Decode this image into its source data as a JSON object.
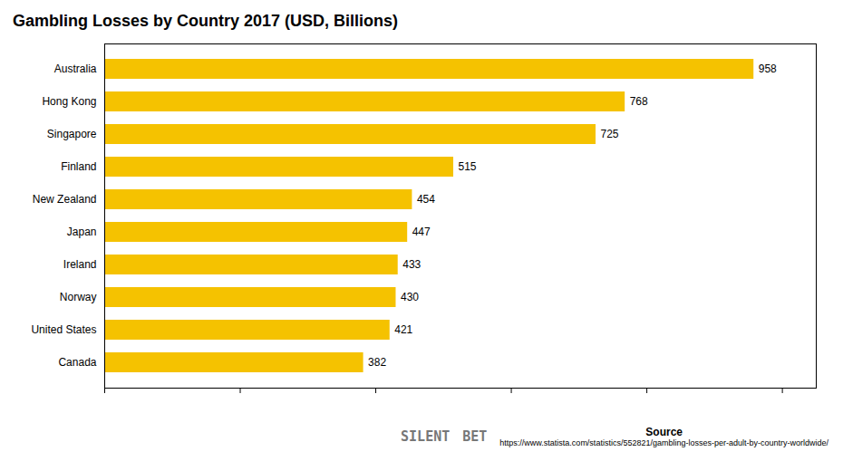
{
  "chart_data": {
    "type": "bar",
    "orientation": "horizontal",
    "title": "Gambling Losses by Country 2017 (USD, Billions)",
    "categories": [
      "Canada",
      "United States",
      "Norway",
      "Ireland",
      "Japan",
      "New Zealand",
      "Finland",
      "Singapore",
      "Hong Kong",
      "Australia"
    ],
    "values": [
      382,
      421,
      430,
      433,
      447,
      454,
      515,
      725,
      768,
      958
    ],
    "color": "#F5C200",
    "xlim": [
      0,
      1050
    ],
    "xticks": [
      0,
      200,
      400,
      600,
      800,
      1000
    ],
    "data_labels": true,
    "tick_labels": "y",
    "grid": false,
    "annotations": [
      "SILENT",
      "BET",
      "Source",
      "https://www.statista.com/statistics/552821/gambling-losses-per-adult-by-country-worldwide/"
    ]
  }
}
